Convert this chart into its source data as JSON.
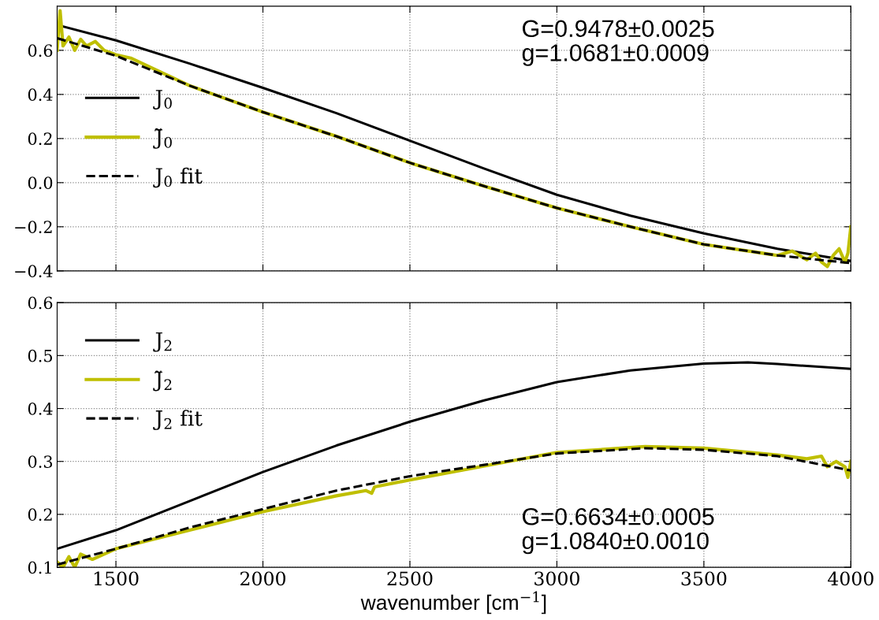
{
  "chart_data": [
    {
      "type": "line",
      "tick_labels": "y",
      "xlim": [
        1300,
        4000
      ],
      "xticks": [
        1500,
        2000,
        2500,
        3000,
        3500,
        4000
      ],
      "ylim": [
        -0.4,
        0.8
      ],
      "yticks": [
        {
          "value": -0.4,
          "label": "−0.4"
        },
        {
          "value": -0.2,
          "label": "−0.2"
        },
        {
          "value": 0,
          "label": "0.0"
        },
        {
          "value": 0.2,
          "label": "0.2"
        },
        {
          "value": 0.4,
          "label": "0.4"
        },
        {
          "value": 0.6,
          "label": "0.6"
        }
      ],
      "grid": true,
      "legend": "left",
      "annotations": [
        "G=0.9478±0.0025",
        "g=1.0681±0.0009"
      ],
      "series": [
        {
          "name": "J$_{0}$",
          "color": "#000000",
          "line_style": "solid",
          "x": [
            1300,
            1500,
            1750,
            2000,
            2250,
            2500,
            2750,
            3000,
            3250,
            3500,
            3750,
            4000
          ],
          "values": [
            0.715,
            0.645,
            0.54,
            0.43,
            0.315,
            0.19,
            0.065,
            -0.055,
            -0.15,
            -0.23,
            -0.3,
            -0.355
          ]
        },
        {
          "name": "J̃$_{0}$",
          "color": "#bfbf00",
          "line_style": "solid",
          "x": [
            1300,
            1310,
            1320,
            1340,
            1360,
            1380,
            1400,
            1430,
            1460,
            1500,
            1550,
            1750,
            2000,
            2250,
            2500,
            2750,
            3000,
            3250,
            3500,
            3700,
            3750,
            3800,
            3850,
            3880,
            3900,
            3920,
            3940,
            3960,
            3980,
            3990,
            4000
          ],
          "values": [
            0.6,
            0.78,
            0.62,
            0.66,
            0.6,
            0.65,
            0.62,
            0.64,
            0.6,
            0.58,
            0.565,
            0.44,
            0.32,
            0.21,
            0.09,
            -0.015,
            -0.115,
            -0.2,
            -0.28,
            -0.32,
            -0.33,
            -0.31,
            -0.35,
            -0.32,
            -0.36,
            -0.38,
            -0.33,
            -0.3,
            -0.36,
            -0.32,
            -0.2
          ]
        },
        {
          "name": "J$_{0}$ fit",
          "color": "#000000",
          "line_style": "dashed",
          "x": [
            1300,
            1500,
            1750,
            2000,
            2250,
            2500,
            2750,
            3000,
            3250,
            3500,
            3750,
            4000
          ],
          "values": [
            0.655,
            0.575,
            0.44,
            0.32,
            0.21,
            0.09,
            -0.015,
            -0.115,
            -0.2,
            -0.28,
            -0.33,
            -0.365
          ]
        }
      ]
    },
    {
      "type": "line",
      "xlabel": "wavenumber [cm$^{−1}$]",
      "xlim": [
        1300,
        4000
      ],
      "xticks": [
        1500,
        2000,
        2500,
        3000,
        3500,
        4000
      ],
      "ylim": [
        0.1,
        0.6
      ],
      "yticks": [
        0.1,
        0.2,
        0.3,
        0.4,
        0.5,
        0.6
      ],
      "grid": true,
      "legend": "top left",
      "annotations": [
        "G=0.6634±0.0005",
        "g=1.0840±0.0010"
      ],
      "series": [
        {
          "name": "J$_{2}$",
          "color": "#000000",
          "line_style": "solid",
          "x": [
            1300,
            1500,
            1750,
            2000,
            2250,
            2500,
            2750,
            3000,
            3250,
            3500,
            3650,
            3750,
            4000
          ],
          "values": [
            0.135,
            0.17,
            0.225,
            0.28,
            0.33,
            0.375,
            0.415,
            0.45,
            0.472,
            0.485,
            0.487,
            0.484,
            0.475
          ]
        },
        {
          "name": "J̃$_{2}$",
          "color": "#bfbf00",
          "line_style": "solid",
          "x": [
            1300,
            1320,
            1340,
            1360,
            1380,
            1420,
            1500,
            1750,
            2000,
            2250,
            2350,
            2370,
            2380,
            2500,
            3000,
            3300,
            3500,
            3750,
            3850,
            3900,
            3920,
            3950,
            3980,
            3990,
            4000
          ],
          "values": [
            0.11,
            0.1,
            0.12,
            0.1,
            0.125,
            0.115,
            0.135,
            0.17,
            0.205,
            0.235,
            0.245,
            0.24,
            0.252,
            0.265,
            0.317,
            0.328,
            0.325,
            0.312,
            0.305,
            0.31,
            0.29,
            0.3,
            0.29,
            0.27,
            0.3
          ]
        },
        {
          "name": "J$_{2}$ fit",
          "color": "#000000",
          "line_style": "dashed",
          "x": [
            1300,
            1500,
            1750,
            2000,
            2250,
            2500,
            3000,
            3300,
            3500,
            3750,
            4000
          ],
          "values": [
            0.105,
            0.135,
            0.175,
            0.21,
            0.245,
            0.272,
            0.315,
            0.325,
            0.322,
            0.31,
            0.283
          ]
        }
      ]
    }
  ]
}
